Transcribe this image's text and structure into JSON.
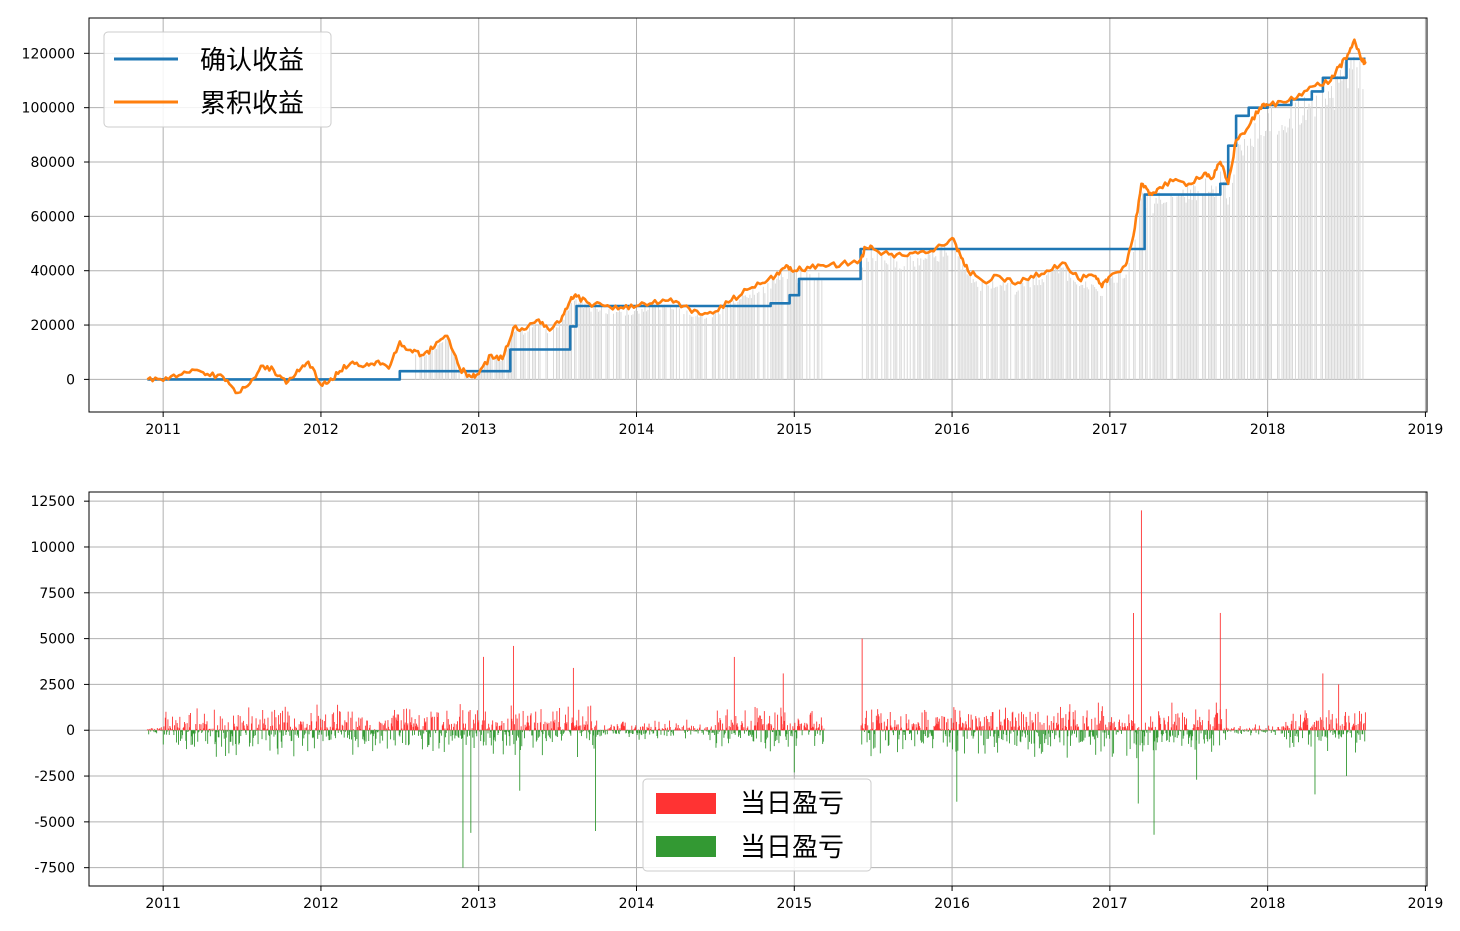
{
  "colors": {
    "confirmed": "#1f77b4",
    "cumulative": "#ff7f0e",
    "gain": "#ff3333",
    "loss": "#339933",
    "holding_bars": "#d9d9d9"
  },
  "chart_data": [
    {
      "type": "line",
      "x_ticks": [
        "2011",
        "2012",
        "2013",
        "2014",
        "2015",
        "2016",
        "2017",
        "2018",
        "2019"
      ],
      "y_ticks": [
        "0",
        "20000",
        "40000",
        "60000",
        "80000",
        "100000",
        "120000"
      ],
      "xlim": [
        2010.53,
        2019.01
      ],
      "ylim": [
        -12000,
        133000
      ],
      "grid": true,
      "legend": "upper left",
      "series": [
        {
          "name": "确认收益",
          "x": [
            2010.9,
            2012.5,
            2012.5,
            2013.2,
            2013.2,
            2013.58,
            2013.58,
            2013.62,
            2013.62,
            2014.25,
            2014.25,
            2014.85,
            2014.85,
            2014.97,
            2014.97,
            2015.03,
            2015.03,
            2015.42,
            2015.42,
            2017.22,
            2017.22,
            2017.7,
            2017.7,
            2017.75,
            2017.75,
            2017.8,
            2017.8,
            2017.88,
            2017.88,
            2018.0,
            2018.0,
            2018.15,
            2018.15,
            2018.28,
            2018.28,
            2018.35,
            2018.35,
            2018.5,
            2018.5,
            2018.62
          ],
          "values": [
            0,
            0,
            3000,
            3000,
            11000,
            11000,
            19500,
            19500,
            27000,
            27000,
            27000,
            27000,
            28000,
            28000,
            31000,
            31000,
            37000,
            37000,
            48000,
            48000,
            68000,
            68000,
            72000,
            72000,
            86000,
            86000,
            97000,
            97000,
            100000,
            100000,
            101000,
            101000,
            103000,
            103000,
            106000,
            106000,
            111000,
            111000,
            118000,
            118000
          ]
        },
        {
          "name": "累积收益",
          "x": [
            2010.9,
            2011.0,
            2011.1,
            2011.2,
            2011.28,
            2011.38,
            2011.46,
            2011.55,
            2011.62,
            2011.7,
            2011.78,
            2011.85,
            2011.92,
            2012.0,
            2012.05,
            2012.12,
            2012.2,
            2012.28,
            2012.35,
            2012.43,
            2012.5,
            2012.58,
            2012.65,
            2012.72,
            2012.8,
            2012.88,
            2012.95,
            2013.0,
            2013.08,
            2013.15,
            2013.22,
            2013.3,
            2013.38,
            2013.45,
            2013.52,
            2013.58,
            2013.62,
            2013.7,
            2013.8,
            2013.9,
            2014.0,
            2014.1,
            2014.2,
            2014.3,
            2014.4,
            2014.5,
            2014.6,
            2014.7,
            2014.8,
            2014.88,
            2014.95,
            2015.0,
            2015.1,
            2015.2,
            2015.3,
            2015.42,
            2015.45,
            2015.5,
            2015.6,
            2015.7,
            2015.8,
            2015.9,
            2016.0,
            2016.05,
            2016.1,
            2016.2,
            2016.3,
            2016.4,
            2016.5,
            2016.6,
            2016.7,
            2016.8,
            2016.9,
            2016.95,
            2017.0,
            2017.1,
            2017.15,
            2017.2,
            2017.25,
            2017.3,
            2017.4,
            2017.5,
            2017.6,
            2017.65,
            2017.7,
            2017.75,
            2017.8,
            2017.88,
            2017.95,
            2018.0,
            2018.1,
            2018.2,
            2018.3,
            2018.4,
            2018.45,
            2018.5,
            2018.55,
            2018.6,
            2018.62
          ],
          "values": [
            0,
            -500,
            1500,
            3500,
            2000,
            1000,
            -5000,
            -1500,
            5000,
            3500,
            -1500,
            3500,
            6500,
            -2000,
            -1000,
            3000,
            6500,
            5000,
            6500,
            4000,
            14000,
            10000,
            9000,
            12000,
            16000,
            4000,
            1000,
            2000,
            9000,
            7500,
            19000,
            18500,
            22000,
            18000,
            21500,
            29000,
            30500,
            28000,
            27000,
            26500,
            27000,
            28000,
            29000,
            27000,
            24000,
            25000,
            29000,
            33000,
            35500,
            38000,
            42000,
            40000,
            41000,
            41500,
            42500,
            44000,
            48500,
            48000,
            46000,
            45500,
            47000,
            48500,
            52000,
            46000,
            40000,
            36000,
            38000,
            35000,
            38000,
            40000,
            43000,
            37000,
            38000,
            34000,
            38000,
            42000,
            53000,
            72000,
            68000,
            70000,
            73000,
            72000,
            76000,
            74000,
            80000,
            72000,
            88000,
            93000,
            100000,
            101000,
            102000,
            105000,
            108000,
            110000,
            115000,
            118000,
            125000,
            117000,
            117000
          ]
        }
      ]
    },
    {
      "type": "bar",
      "x_ticks": [
        "2011",
        "2012",
        "2013",
        "2014",
        "2015",
        "2016",
        "2017",
        "2018",
        "2019"
      ],
      "y_ticks": [
        "12500",
        "10000",
        "7500",
        "5000",
        "2500",
        "0",
        "-2500",
        "-5000",
        "-7500"
      ],
      "xlim": [
        2010.53,
        2019.01
      ],
      "ylim": [
        -8500,
        13000
      ],
      "grid": true,
      "legend": "lower center",
      "legend_labels": [
        "当日盈亏",
        "当日盈亏"
      ],
      "spikes": [
        {
          "x": 2012.9,
          "value": -7500
        },
        {
          "x": 2012.95,
          "value": -5600
        },
        {
          "x": 2013.03,
          "value": 4000
        },
        {
          "x": 2013.22,
          "value": 4600
        },
        {
          "x": 2013.26,
          "value": -3300
        },
        {
          "x": 2013.6,
          "value": 3400
        },
        {
          "x": 2013.74,
          "value": -5500
        },
        {
          "x": 2014.62,
          "value": 4000
        },
        {
          "x": 2014.93,
          "value": 3100
        },
        {
          "x": 2015.0,
          "value": -2300
        },
        {
          "x": 2015.43,
          "value": 5000
        },
        {
          "x": 2016.03,
          "value": -3900
        },
        {
          "x": 2017.15,
          "value": 6400
        },
        {
          "x": 2017.2,
          "value": 12000
        },
        {
          "x": 2017.18,
          "value": -4000
        },
        {
          "x": 2017.28,
          "value": -5700
        },
        {
          "x": 2017.7,
          "value": 6400
        },
        {
          "x": 2017.55,
          "value": -2700
        },
        {
          "x": 2018.3,
          "value": -3500
        },
        {
          "x": 2018.5,
          "value": -2500
        },
        {
          "x": 2018.35,
          "value": 3100
        },
        {
          "x": 2018.45,
          "value": 2500
        }
      ]
    }
  ]
}
